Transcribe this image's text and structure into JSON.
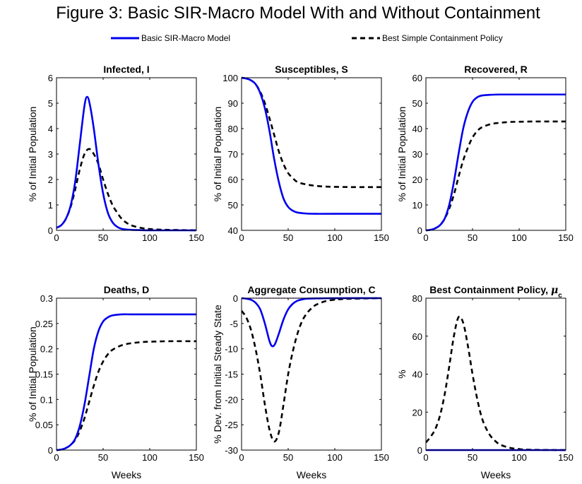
{
  "figure": {
    "title": "Figure 3: Basic SIR-Macro Model With and Without Containment",
    "legend": [
      {
        "label": "Basic SIR-Macro Model",
        "color": "#0000ee",
        "style": "solid"
      },
      {
        "label": "Best Simple Containment Policy",
        "color": "#000000",
        "style": "dashed"
      }
    ]
  },
  "chart_data": [
    {
      "type": "line",
      "title": "Infected, I",
      "xlabel": "",
      "ylabel": "% of Initial Population",
      "xlim": [
        0,
        150
      ],
      "ylim": [
        0,
        6
      ],
      "xticks": [
        0,
        50,
        100,
        150
      ],
      "yticks": [
        0,
        1,
        2,
        3,
        4,
        5,
        6
      ],
      "series": [
        {
          "name": "Basic SIR-Macro Model",
          "x": [
            0,
            5,
            10,
            15,
            20,
            25,
            30,
            33,
            36,
            40,
            45,
            50,
            55,
            60,
            65,
            70,
            80,
            90,
            100,
            120,
            150
          ],
          "y": [
            0.1,
            0.2,
            0.45,
            0.95,
            1.9,
            3.4,
            4.9,
            5.25,
            4.9,
            4.0,
            2.6,
            1.45,
            0.7,
            0.32,
            0.14,
            0.06,
            0.02,
            0.01,
            0,
            0,
            0
          ]
        },
        {
          "name": "Best Simple Containment Policy",
          "x": [
            0,
            5,
            10,
            15,
            20,
            25,
            30,
            35,
            40,
            45,
            50,
            55,
            60,
            65,
            70,
            75,
            80,
            90,
            100,
            110,
            120,
            150
          ],
          "y": [
            0.1,
            0.2,
            0.45,
            0.9,
            1.6,
            2.4,
            3.0,
            3.2,
            3.0,
            2.6,
            2.0,
            1.45,
            1.0,
            0.7,
            0.45,
            0.3,
            0.2,
            0.1,
            0.05,
            0.03,
            0.02,
            0
          ]
        }
      ]
    },
    {
      "type": "line",
      "title": "Susceptibles, S",
      "xlabel": "",
      "ylabel": "% of Initial Population",
      "xlim": [
        0,
        150
      ],
      "ylim": [
        40,
        100
      ],
      "xticks": [
        0,
        50,
        100,
        150
      ],
      "yticks": [
        40,
        50,
        60,
        70,
        80,
        90,
        100
      ],
      "series": [
        {
          "name": "Basic SIR-Macro Model",
          "x": [
            0,
            5,
            10,
            15,
            20,
            25,
            30,
            35,
            40,
            45,
            50,
            55,
            60,
            70,
            80,
            100,
            150
          ],
          "y": [
            100,
            99.7,
            99,
            97.5,
            94,
            88,
            79,
            68,
            59,
            52.5,
            49.2,
            47.7,
            47,
            46.6,
            46.5,
            46.5,
            46.5
          ]
        },
        {
          "name": "Best Simple Containment Policy",
          "x": [
            0,
            5,
            10,
            15,
            20,
            25,
            30,
            35,
            40,
            45,
            50,
            55,
            60,
            70,
            80,
            90,
            100,
            120,
            150
          ],
          "y": [
            100,
            99.7,
            99,
            97.5,
            94.5,
            90,
            84,
            77.5,
            71,
            66,
            62.5,
            60.5,
            59,
            58,
            57.5,
            57.2,
            57.1,
            57,
            57
          ]
        }
      ]
    },
    {
      "type": "line",
      "title": "Recovered, R",
      "xlabel": "",
      "ylabel": "% of Initial Population",
      "xlim": [
        0,
        150
      ],
      "ylim": [
        0,
        60
      ],
      "xticks": [
        0,
        50,
        100,
        150
      ],
      "yticks": [
        0,
        10,
        20,
        30,
        40,
        50,
        60
      ],
      "series": [
        {
          "name": "Basic SIR-Macro Model",
          "x": [
            0,
            5,
            10,
            15,
            20,
            25,
            30,
            35,
            40,
            45,
            50,
            55,
            60,
            70,
            80,
            100,
            150
          ],
          "y": [
            0,
            0.2,
            0.8,
            2,
            4.5,
            10,
            19,
            30,
            40,
            46.5,
            50.5,
            52.3,
            53,
            53.3,
            53.4,
            53.4,
            53.4
          ]
        },
        {
          "name": "Best Simple Containment Policy",
          "x": [
            0,
            5,
            10,
            15,
            20,
            25,
            30,
            35,
            40,
            45,
            50,
            55,
            60,
            70,
            80,
            90,
            100,
            120,
            150
          ],
          "y": [
            0,
            0.2,
            0.8,
            2,
            4.5,
            8.5,
            14,
            21,
            27.5,
            32.5,
            36.5,
            39,
            40.5,
            41.8,
            42.3,
            42.6,
            42.7,
            42.8,
            42.8
          ]
        }
      ]
    },
    {
      "type": "line",
      "title": "Deaths, D",
      "xlabel": "Weeks",
      "ylabel": "% of Initial Population",
      "xlim": [
        0,
        150
      ],
      "ylim": [
        0,
        0.3
      ],
      "xticks": [
        0,
        50,
        100,
        150
      ],
      "yticks": [
        0,
        0.05,
        0.1,
        0.15,
        0.2,
        0.25,
        0.3
      ],
      "ytick_labels": [
        "0",
        "0.05",
        "0.1",
        "0.15",
        "0.2",
        "0.25",
        "0.3"
      ],
      "series": [
        {
          "name": "Basic SIR-Macro Model",
          "x": [
            0,
            5,
            10,
            15,
            20,
            25,
            30,
            35,
            40,
            45,
            50,
            55,
            60,
            70,
            80,
            100,
            150
          ],
          "y": [
            0,
            0.001,
            0.004,
            0.01,
            0.022,
            0.048,
            0.09,
            0.145,
            0.2,
            0.235,
            0.254,
            0.262,
            0.266,
            0.268,
            0.268,
            0.268,
            0.268
          ]
        },
        {
          "name": "Best Simple Containment Policy",
          "x": [
            0,
            5,
            10,
            15,
            20,
            25,
            30,
            35,
            40,
            45,
            50,
            55,
            60,
            70,
            80,
            90,
            100,
            120,
            150
          ],
          "y": [
            0,
            0.001,
            0.004,
            0.01,
            0.02,
            0.038,
            0.063,
            0.095,
            0.127,
            0.155,
            0.175,
            0.189,
            0.198,
            0.207,
            0.211,
            0.213,
            0.214,
            0.215,
            0.215
          ]
        }
      ]
    },
    {
      "type": "line",
      "title": "Aggregate Consumption, C",
      "xlabel": "Weeks",
      "ylabel": "% Dev. from Initial Steady State",
      "xlim": [
        0,
        150
      ],
      "ylim": [
        -30,
        0
      ],
      "xticks": [
        0,
        50,
        100,
        150
      ],
      "yticks": [
        -30,
        -25,
        -20,
        -15,
        -10,
        -5,
        0
      ],
      "reference_line": {
        "y": 0,
        "color": "#cc00cc",
        "style": "dotted"
      },
      "series": [
        {
          "name": "Basic SIR-Macro Model",
          "x": [
            0,
            5,
            10,
            15,
            20,
            25,
            30,
            33,
            36,
            40,
            45,
            50,
            55,
            60,
            65,
            70,
            80,
            100,
            150
          ],
          "y": [
            0,
            -0.1,
            -0.3,
            -0.9,
            -2.2,
            -5,
            -8.5,
            -9.5,
            -9,
            -7,
            -4.2,
            -2.2,
            -1.1,
            -0.5,
            -0.25,
            -0.1,
            -0.05,
            0,
            0
          ]
        },
        {
          "name": "Best Simple Containment Policy",
          "x": [
            0,
            5,
            10,
            15,
            20,
            25,
            30,
            35,
            40,
            45,
            50,
            55,
            60,
            65,
            70,
            75,
            80,
            90,
            100,
            110,
            120,
            150
          ],
          "y": [
            -2.5,
            -3.8,
            -6.2,
            -10,
            -15,
            -21,
            -26,
            -28.3,
            -26.5,
            -21,
            -15,
            -10.5,
            -7,
            -4.5,
            -3,
            -2,
            -1.3,
            -0.6,
            -0.3,
            -0.15,
            -0.1,
            0
          ]
        }
      ]
    },
    {
      "type": "line",
      "title": "Best Containment Policy,",
      "title_symbol": "μ",
      "title_subscript": "c",
      "xlabel": "Weeks",
      "ylabel": "%",
      "xlim": [
        0,
        150
      ],
      "ylim": [
        0,
        80
      ],
      "xticks": [
        0,
        50,
        100,
        150
      ],
      "yticks": [
        0,
        20,
        40,
        60,
        80
      ],
      "series": [
        {
          "name": "Basic SIR-Macro Model",
          "x": [
            0,
            150
          ],
          "y": [
            0,
            0
          ]
        },
        {
          "name": "Best Simple Containment Policy",
          "x": [
            0,
            5,
            10,
            15,
            20,
            25,
            30,
            35,
            40,
            45,
            50,
            55,
            60,
            65,
            70,
            75,
            80,
            90,
            100,
            110,
            120,
            150
          ],
          "y": [
            4,
            7,
            11,
            18,
            29,
            44,
            60,
            70,
            67,
            55,
            40,
            27,
            17,
            11,
            7,
            4.5,
            2.8,
            1.2,
            0.5,
            0.2,
            0.1,
            0
          ]
        }
      ]
    }
  ]
}
